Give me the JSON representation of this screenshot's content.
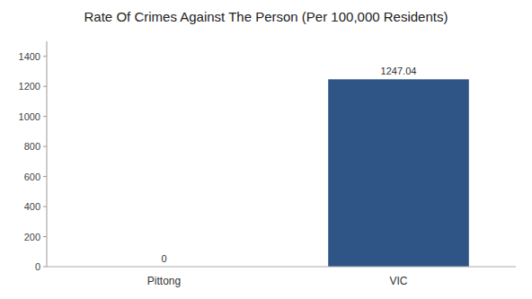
{
  "chart_data": {
    "type": "bar",
    "title": "Rate Of Crimes Against The Person (Per 100,000 Residents)",
    "categories": [
      "Pittong",
      "VIC"
    ],
    "values": [
      0,
      1247.04
    ],
    "color": "#2e5586",
    "ylim": [
      0,
      1500
    ],
    "yticks": [
      0,
      200,
      400,
      600,
      800,
      1000,
      1200,
      1400
    ],
    "grid": false,
    "data_labels": true
  }
}
